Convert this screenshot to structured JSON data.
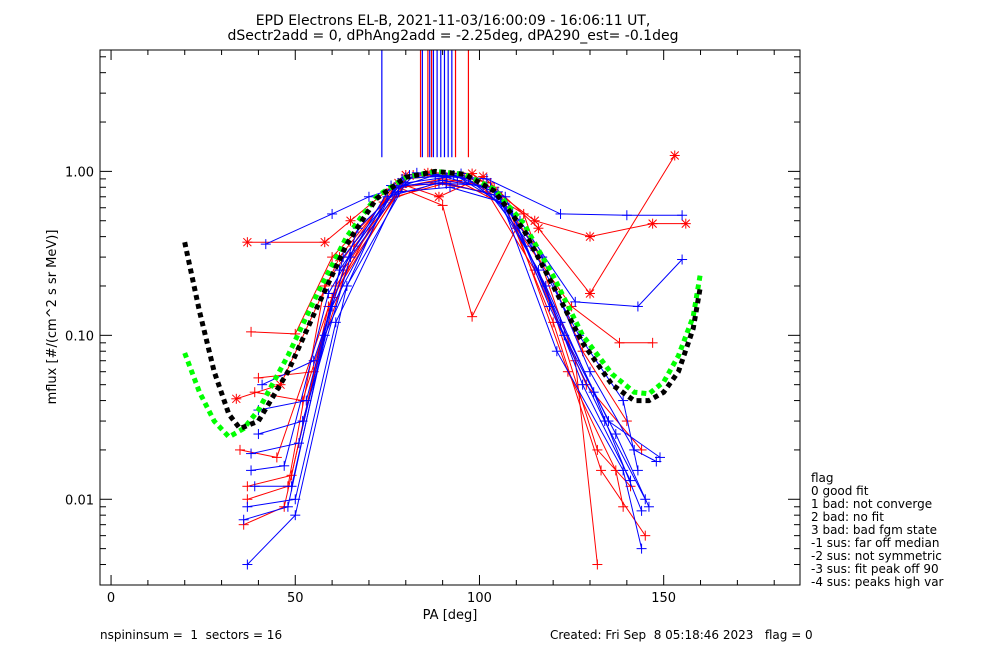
{
  "header": {
    "line1": "EPD Electrons EL-B, 2021-11-03/16:00:09 - 16:06:11 UT,",
    "line2": "dSectr2add = 0, dPhAng2add = -2.25deg, dPA290_est=  -0.1deg"
  },
  "footer": {
    "left": "nspininsum =  1  sectors = 16",
    "right": "Created: Fri Sep  8 05:18:46 2023   flag = 0"
  },
  "flag_legend": {
    "title": "flag",
    "items": [
      " 0 good fit",
      " 1 bad: not converge",
      " 2 bad: no fit",
      " 3 bad: bad fgm state",
      "-1 sus: far off median",
      "-2 sus: not symmetric",
      "-3 sus: fit peak off 90",
      "-4 sus: peaks high var"
    ]
  },
  "colors": {
    "red": "#ff0000",
    "blue": "#0000ff",
    "green": "#00ff00",
    "black": "#000000"
  },
  "chart_data": {
    "type": "line",
    "xlabel": "PA [deg]",
    "ylabel": "mflux [#/(cm^2 s sr MeV)]",
    "xlim": [
      -3,
      187
    ],
    "ylim": [
      0.003,
      5.5
    ],
    "yscale": "log",
    "xticks": [
      0,
      50,
      100,
      150
    ],
    "xtick_labels": [
      "0",
      "50",
      "100",
      "150"
    ],
    "yticks": [
      0.01,
      0.1,
      1.0
    ],
    "ytick_labels": [
      "0.01",
      "0.10",
      "1.00"
    ],
    "grid": false,
    "series": [
      {
        "color": "red",
        "marker": "asterisk",
        "points": [
          [
            37,
            0.37
          ],
          [
            58,
            0.37
          ],
          [
            65,
            0.5
          ],
          [
            80,
            0.95
          ],
          [
            86,
            0.98
          ],
          [
            98,
            0.97
          ],
          [
            115,
            0.5
          ],
          [
            130,
            0.4
          ],
          [
            147,
            0.48
          ],
          [
            156,
            0.48
          ]
        ]
      },
      {
        "color": "red",
        "marker": "plus",
        "points": [
          [
            38,
            0.105
          ],
          [
            50,
            0.102
          ],
          [
            60,
            0.3
          ],
          [
            78,
            0.8
          ],
          [
            90,
            0.62
          ],
          [
            98,
            0.13
          ],
          [
            110,
            0.45
          ],
          [
            125,
            0.15
          ],
          [
            138,
            0.09
          ],
          [
            147,
            0.09
          ]
        ]
      },
      {
        "color": "red",
        "marker": "plus",
        "points": [
          [
            37,
            0.01
          ],
          [
            48,
            0.012
          ],
          [
            58,
            0.2
          ],
          [
            76,
            0.78
          ],
          [
            90,
            0.9
          ],
          [
            104,
            0.8
          ],
          [
            118,
            0.2
          ],
          [
            132,
            0.02
          ],
          [
            141,
            0.012
          ]
        ]
      },
      {
        "color": "red",
        "marker": "plus",
        "points": [
          [
            36,
            0.007
          ],
          [
            47,
            0.009
          ],
          [
            60,
            0.17
          ],
          [
            77,
            0.7
          ],
          [
            91,
            0.85
          ],
          [
            106,
            0.7
          ],
          [
            120,
            0.12
          ],
          [
            133,
            0.015
          ],
          [
            145,
            0.006
          ]
        ]
      },
      {
        "color": "red",
        "marker": "plus",
        "points": [
          [
            39,
            0.045
          ],
          [
            52,
            0.04
          ],
          [
            63,
            0.25
          ],
          [
            80,
            0.9
          ],
          [
            92,
            0.95
          ],
          [
            103,
            0.85
          ],
          [
            117,
            0.3
          ],
          [
            128,
            0.08
          ],
          [
            140,
            0.03
          ]
        ]
      },
      {
        "color": "red",
        "marker": "plus",
        "points": [
          [
            35,
            0.02
          ],
          [
            45,
            0.018
          ],
          [
            61,
            0.2
          ],
          [
            79,
            0.8
          ],
          [
            94,
            0.88
          ],
          [
            108,
            0.6
          ],
          [
            124,
            0.06
          ],
          [
            137,
            0.015
          ],
          [
            139,
            0.009
          ]
        ]
      },
      {
        "color": "red",
        "marker": "plus",
        "points": [
          [
            40,
            0.055
          ],
          [
            55,
            0.06
          ],
          [
            66,
            0.35
          ],
          [
            82,
            0.95
          ],
          [
            96,
            0.92
          ],
          [
            112,
            0.55
          ],
          [
            126,
            0.07
          ],
          [
            132,
            0.004
          ]
        ]
      },
      {
        "color": "red",
        "marker": "asterisk",
        "points": [
          [
            34,
            0.041
          ],
          [
            46,
            0.05
          ],
          [
            62,
            0.3
          ],
          [
            78,
            0.85
          ],
          [
            89,
            0.7
          ],
          [
            101,
            0.93
          ],
          [
            116,
            0.45
          ],
          [
            130,
            0.18
          ],
          [
            153,
            1.25
          ]
        ]
      },
      {
        "color": "red",
        "marker": "plus",
        "points": [
          [
            37,
            0.012
          ],
          [
            49,
            0.014
          ],
          [
            59,
            0.15
          ],
          [
            74,
            0.65
          ],
          [
            88,
            0.85
          ],
          [
            102,
            0.75
          ],
          [
            115,
            0.25
          ],
          [
            129,
            0.05
          ],
          [
            144,
            0.02
          ]
        ]
      },
      {
        "color": "blue",
        "marker": "plus",
        "points": [
          [
            42,
            0.36
          ],
          [
            60,
            0.55
          ],
          [
            70,
            0.7
          ],
          [
            88,
            0.95
          ],
          [
            102,
            0.9
          ],
          [
            122,
            0.55
          ],
          [
            140,
            0.54
          ],
          [
            155,
            0.54
          ]
        ]
      },
      {
        "color": "blue",
        "marker": "plus",
        "points": [
          [
            37,
            0.004
          ],
          [
            50,
            0.008
          ],
          [
            64,
            0.2
          ],
          [
            80,
            0.85
          ],
          [
            91,
            0.92
          ],
          [
            105,
            0.75
          ],
          [
            121,
            0.08
          ],
          [
            139,
            0.015
          ],
          [
            144,
            0.005
          ]
        ]
      },
      {
        "color": "blue",
        "marker": "plus",
        "points": [
          [
            38,
            0.019
          ],
          [
            51,
            0.022
          ],
          [
            62,
            0.25
          ],
          [
            79,
            0.9
          ],
          [
            93,
            0.95
          ],
          [
            107,
            0.7
          ],
          [
            119,
            0.15
          ],
          [
            134,
            0.03
          ],
          [
            145,
            0.01
          ]
        ]
      },
      {
        "color": "blue",
        "marker": "plus",
        "points": [
          [
            40,
            0.025
          ],
          [
            52,
            0.03
          ],
          [
            65,
            0.3
          ],
          [
            81,
            0.95
          ],
          [
            95,
            0.97
          ],
          [
            109,
            0.55
          ],
          [
            123,
            0.1
          ],
          [
            137,
            0.025
          ],
          [
            146,
            0.009
          ]
        ]
      },
      {
        "color": "blue",
        "marker": "plus",
        "points": [
          [
            39,
            0.012
          ],
          [
            49,
            0.012
          ],
          [
            60,
            0.15
          ],
          [
            77,
            0.8
          ],
          [
            90,
            0.88
          ],
          [
            103,
            0.8
          ],
          [
            117,
            0.3
          ],
          [
            130,
            0.06
          ],
          [
            142,
            0.02
          ],
          [
            148,
            0.017
          ]
        ]
      },
      {
        "color": "blue",
        "marker": "plus",
        "points": [
          [
            36,
            0.0075
          ],
          [
            48,
            0.009
          ],
          [
            58,
            0.1
          ],
          [
            75,
            0.7
          ],
          [
            89,
            0.85
          ],
          [
            101,
            0.82
          ],
          [
            114,
            0.35
          ],
          [
            127,
            0.1
          ],
          [
            139,
            0.04
          ],
          [
            143,
            0.015
          ]
        ]
      },
      {
        "color": "blue",
        "marker": "plus",
        "points": [
          [
            41,
            0.05
          ],
          [
            55,
            0.07
          ],
          [
            67,
            0.45
          ],
          [
            83,
            0.98
          ],
          [
            97,
            0.9
          ],
          [
            111,
            0.5
          ],
          [
            126,
            0.16
          ],
          [
            143,
            0.15
          ],
          [
            155,
            0.29
          ]
        ]
      },
      {
        "color": "blue",
        "marker": "plus",
        "points": [
          [
            40,
            0.035
          ],
          [
            53,
            0.04
          ],
          [
            63,
            0.3
          ],
          [
            80,
            0.92
          ],
          [
            94,
            0.93
          ],
          [
            108,
            0.6
          ],
          [
            122,
            0.12
          ],
          [
            135,
            0.03
          ],
          [
            149,
            0.018
          ]
        ]
      },
      {
        "color": "blue",
        "marker": "plus",
        "points": [
          [
            37,
            0.009
          ],
          [
            50,
            0.01
          ],
          [
            61,
            0.12
          ],
          [
            78,
            0.75
          ],
          [
            92,
            0.8
          ],
          [
            106,
            0.65
          ],
          [
            118,
            0.2
          ],
          [
            131,
            0.045
          ],
          [
            144,
            0.0085
          ]
        ]
      },
      {
        "color": "blue",
        "marker": "plus",
        "points": [
          [
            38,
            0.015
          ],
          [
            47,
            0.016
          ],
          [
            59,
            0.18
          ],
          [
            76,
            0.82
          ],
          [
            91,
            0.84
          ],
          [
            104,
            0.72
          ],
          [
            116,
            0.25
          ],
          [
            128,
            0.05
          ],
          [
            141,
            0.013
          ]
        ]
      },
      {
        "color": "green",
        "marker": "none",
        "dashed": true,
        "points": [
          [
            20,
            0.078
          ],
          [
            24,
            0.045
          ],
          [
            28,
            0.03
          ],
          [
            32,
            0.024
          ],
          [
            36,
            0.027
          ],
          [
            40,
            0.035
          ],
          [
            48,
            0.075
          ],
          [
            56,
            0.18
          ],
          [
            64,
            0.4
          ],
          [
            72,
            0.7
          ],
          [
            80,
            0.92
          ],
          [
            88,
            1.0
          ],
          [
            96,
            0.96
          ],
          [
            104,
            0.78
          ],
          [
            112,
            0.48
          ],
          [
            120,
            0.23
          ],
          [
            128,
            0.1
          ],
          [
            136,
            0.058
          ],
          [
            142,
            0.045
          ],
          [
            146,
            0.044
          ],
          [
            150,
            0.052
          ],
          [
            154,
            0.075
          ],
          [
            158,
            0.13
          ],
          [
            160,
            0.24
          ]
        ]
      },
      {
        "color": "black",
        "marker": "none",
        "dashed": true,
        "points": [
          [
            20,
            0.37
          ],
          [
            24,
            0.14
          ],
          [
            28,
            0.06
          ],
          [
            32,
            0.033
          ],
          [
            35,
            0.027
          ],
          [
            40,
            0.03
          ],
          [
            48,
            0.06
          ],
          [
            56,
            0.15
          ],
          [
            64,
            0.36
          ],
          [
            72,
            0.68
          ],
          [
            80,
            0.92
          ],
          [
            88,
            1.0
          ],
          [
            96,
            0.96
          ],
          [
            104,
            0.76
          ],
          [
            112,
            0.44
          ],
          [
            120,
            0.2
          ],
          [
            128,
            0.09
          ],
          [
            136,
            0.05
          ],
          [
            142,
            0.04
          ],
          [
            146,
            0.04
          ],
          [
            150,
            0.045
          ],
          [
            154,
            0.06
          ],
          [
            158,
            0.11
          ],
          [
            160,
            0.2
          ]
        ]
      }
    ],
    "vlines": [
      {
        "color": "blue",
        "x": 73.5,
        "y0": 1.22
      },
      {
        "color": "blue",
        "x": 84.5,
        "y0": 1.22
      },
      {
        "color": "blue",
        "x": 86.5,
        "y0": 1.22
      },
      {
        "color": "blue",
        "x": 87.5,
        "y0": 1.22
      },
      {
        "color": "blue",
        "x": 88.5,
        "y0": 1.22
      },
      {
        "color": "blue",
        "x": 89.5,
        "y0": 1.22
      },
      {
        "color": "blue",
        "x": 90.5,
        "y0": 1.22
      },
      {
        "color": "blue",
        "x": 91.5,
        "y0": 1.22
      },
      {
        "color": "blue",
        "x": 92.5,
        "y0": 1.22
      },
      {
        "color": "red",
        "x": 84,
        "y0": 1.22
      },
      {
        "color": "red",
        "x": 86,
        "y0": 1.22
      },
      {
        "color": "red",
        "x": 87,
        "y0": 1.22
      },
      {
        "color": "red",
        "x": 93.5,
        "y0": 1.22
      },
      {
        "color": "red",
        "x": 97,
        "y0": 1.22
      }
    ]
  }
}
